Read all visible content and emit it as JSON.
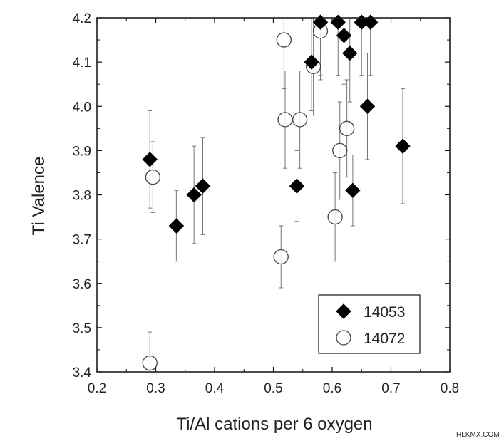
{
  "chart_data": {
    "type": "scatter",
    "title": "",
    "xlabel": "Ti/Al cations per 6 oxygen",
    "ylabel": "Ti Valence",
    "xlim": [
      0.2,
      0.8
    ],
    "ylim": [
      3.4,
      4.2
    ],
    "xticks": [
      "0.2",
      "0.3",
      "0.4",
      "0.5",
      "0.6",
      "0.7",
      "0.8"
    ],
    "yticks": [
      "3.4",
      "3.5",
      "3.6",
      "3.7",
      "3.8",
      "3.9",
      "4.0",
      "4.1",
      "4.2"
    ],
    "grid": false,
    "legend_position": "bottom-right",
    "series": [
      {
        "name": "14053",
        "marker": "filled-diamond",
        "color": "#000000",
        "points": [
          {
            "x": 0.29,
            "y": 3.88,
            "err_low": 3.77,
            "err_high": 3.99
          },
          {
            "x": 0.335,
            "y": 3.73,
            "err_low": 3.65,
            "err_high": 3.81
          },
          {
            "x": 0.365,
            "y": 3.8,
            "err_low": 3.69,
            "err_high": 3.91
          },
          {
            "x": 0.38,
            "y": 3.82,
            "err_low": 3.71,
            "err_high": 3.93
          },
          {
            "x": 0.54,
            "y": 3.82,
            "err_low": 3.74,
            "err_high": 3.9
          },
          {
            "x": 0.565,
            "y": 4.1,
            "err_low": 3.99,
            "err_high": 4.2
          },
          {
            "x": 0.58,
            "y": 4.19,
            "err_low": 4.07,
            "err_high": 4.2
          },
          {
            "x": 0.61,
            "y": 4.19,
            "err_low": 4.07,
            "err_high": 4.2
          },
          {
            "x": 0.62,
            "y": 4.16,
            "err_low": 4.05,
            "err_high": 4.2
          },
          {
            "x": 0.63,
            "y": 4.12,
            "err_low": 4.01,
            "err_high": 4.2
          },
          {
            "x": 0.635,
            "y": 3.81,
            "err_low": 3.73,
            "err_high": 3.89
          },
          {
            "x": 0.65,
            "y": 4.19,
            "err_low": 4.07,
            "err_high": 4.2
          },
          {
            "x": 0.66,
            "y": 4.0,
            "err_low": 3.88,
            "err_high": 4.12
          },
          {
            "x": 0.665,
            "y": 4.19,
            "err_low": 4.07,
            "err_high": 4.2
          },
          {
            "x": 0.72,
            "y": 3.91,
            "err_low": 3.78,
            "err_high": 4.04
          }
        ]
      },
      {
        "name": "14072",
        "marker": "open-circle",
        "color": "#000000",
        "points": [
          {
            "x": 0.29,
            "y": 3.42,
            "err_low": 3.4,
            "err_high": 3.49
          },
          {
            "x": 0.295,
            "y": 3.84,
            "err_low": 3.76,
            "err_high": 3.92
          },
          {
            "x": 0.513,
            "y": 3.66,
            "err_low": 3.59,
            "err_high": 3.73
          },
          {
            "x": 0.518,
            "y": 4.15,
            "err_low": 4.04,
            "err_high": 4.2
          },
          {
            "x": 0.52,
            "y": 3.97,
            "err_low": 3.86,
            "err_high": 4.08
          },
          {
            "x": 0.545,
            "y": 3.97,
            "err_low": 3.86,
            "err_high": 4.08
          },
          {
            "x": 0.568,
            "y": 4.09,
            "err_low": 3.98,
            "err_high": 4.2
          },
          {
            "x": 0.58,
            "y": 4.17,
            "err_low": 4.06,
            "err_high": 4.2
          },
          {
            "x": 0.605,
            "y": 3.75,
            "err_low": 3.65,
            "err_high": 3.85
          },
          {
            "x": 0.613,
            "y": 3.9,
            "err_low": 3.79,
            "err_high": 4.01
          },
          {
            "x": 0.625,
            "y": 3.95,
            "err_low": 3.84,
            "err_high": 4.06
          }
        ]
      }
    ]
  },
  "watermark": "HLKMX.COM"
}
